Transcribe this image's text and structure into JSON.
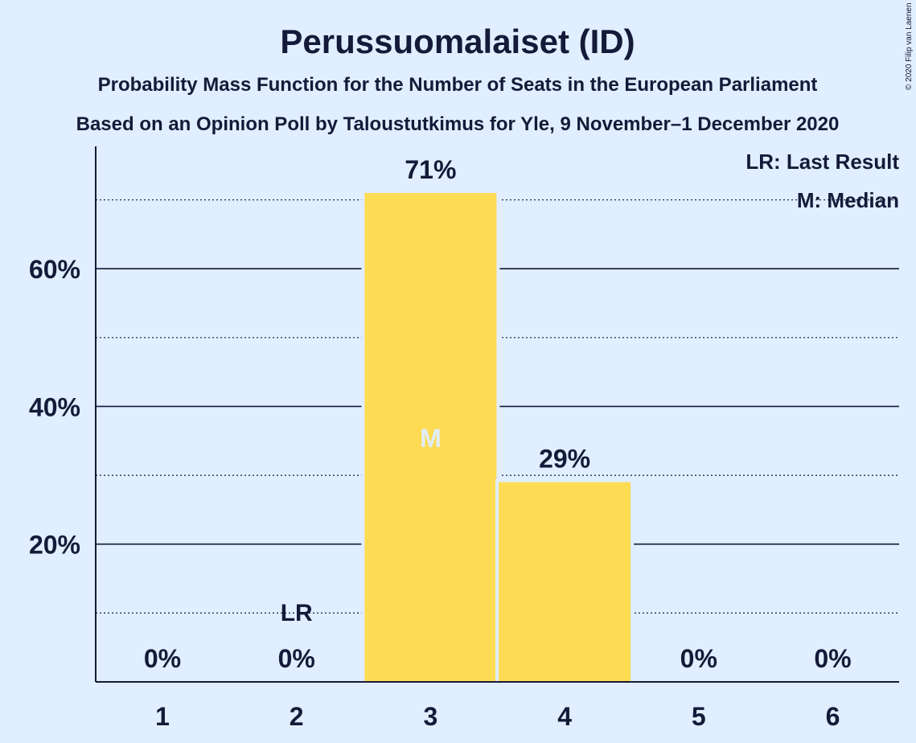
{
  "chart_data": {
    "type": "bar",
    "title": "Perussuomalaiset (ID)",
    "subtitle": "Probability Mass Function for the Number of Seats in the European Parliament",
    "subtitle2": "Based on an Opinion Poll by Taloustutkimus for Yle, 9 November–1 December 2020",
    "copyright": "© 2020 Filip van Laenen",
    "categories": [
      "1",
      "2",
      "3",
      "4",
      "5",
      "6"
    ],
    "values": [
      0,
      0,
      71,
      29,
      0,
      0
    ],
    "value_labels": [
      "0%",
      "0%",
      "71%",
      "29%",
      "0%",
      "0%"
    ],
    "ylim": [
      0,
      77
    ],
    "yticks": [
      20,
      40,
      60
    ],
    "ytick_labels": [
      "20%",
      "40%",
      "60%"
    ],
    "minor_grid": [
      10,
      30,
      50,
      70
    ],
    "bar_color": "#fddb53",
    "last_result_index": 1,
    "last_result_label": "LR",
    "median_index": 2,
    "median_label": "M",
    "legend": {
      "placement": "top-right",
      "items": [
        "LR: Last Result",
        "M: Median"
      ]
    }
  }
}
